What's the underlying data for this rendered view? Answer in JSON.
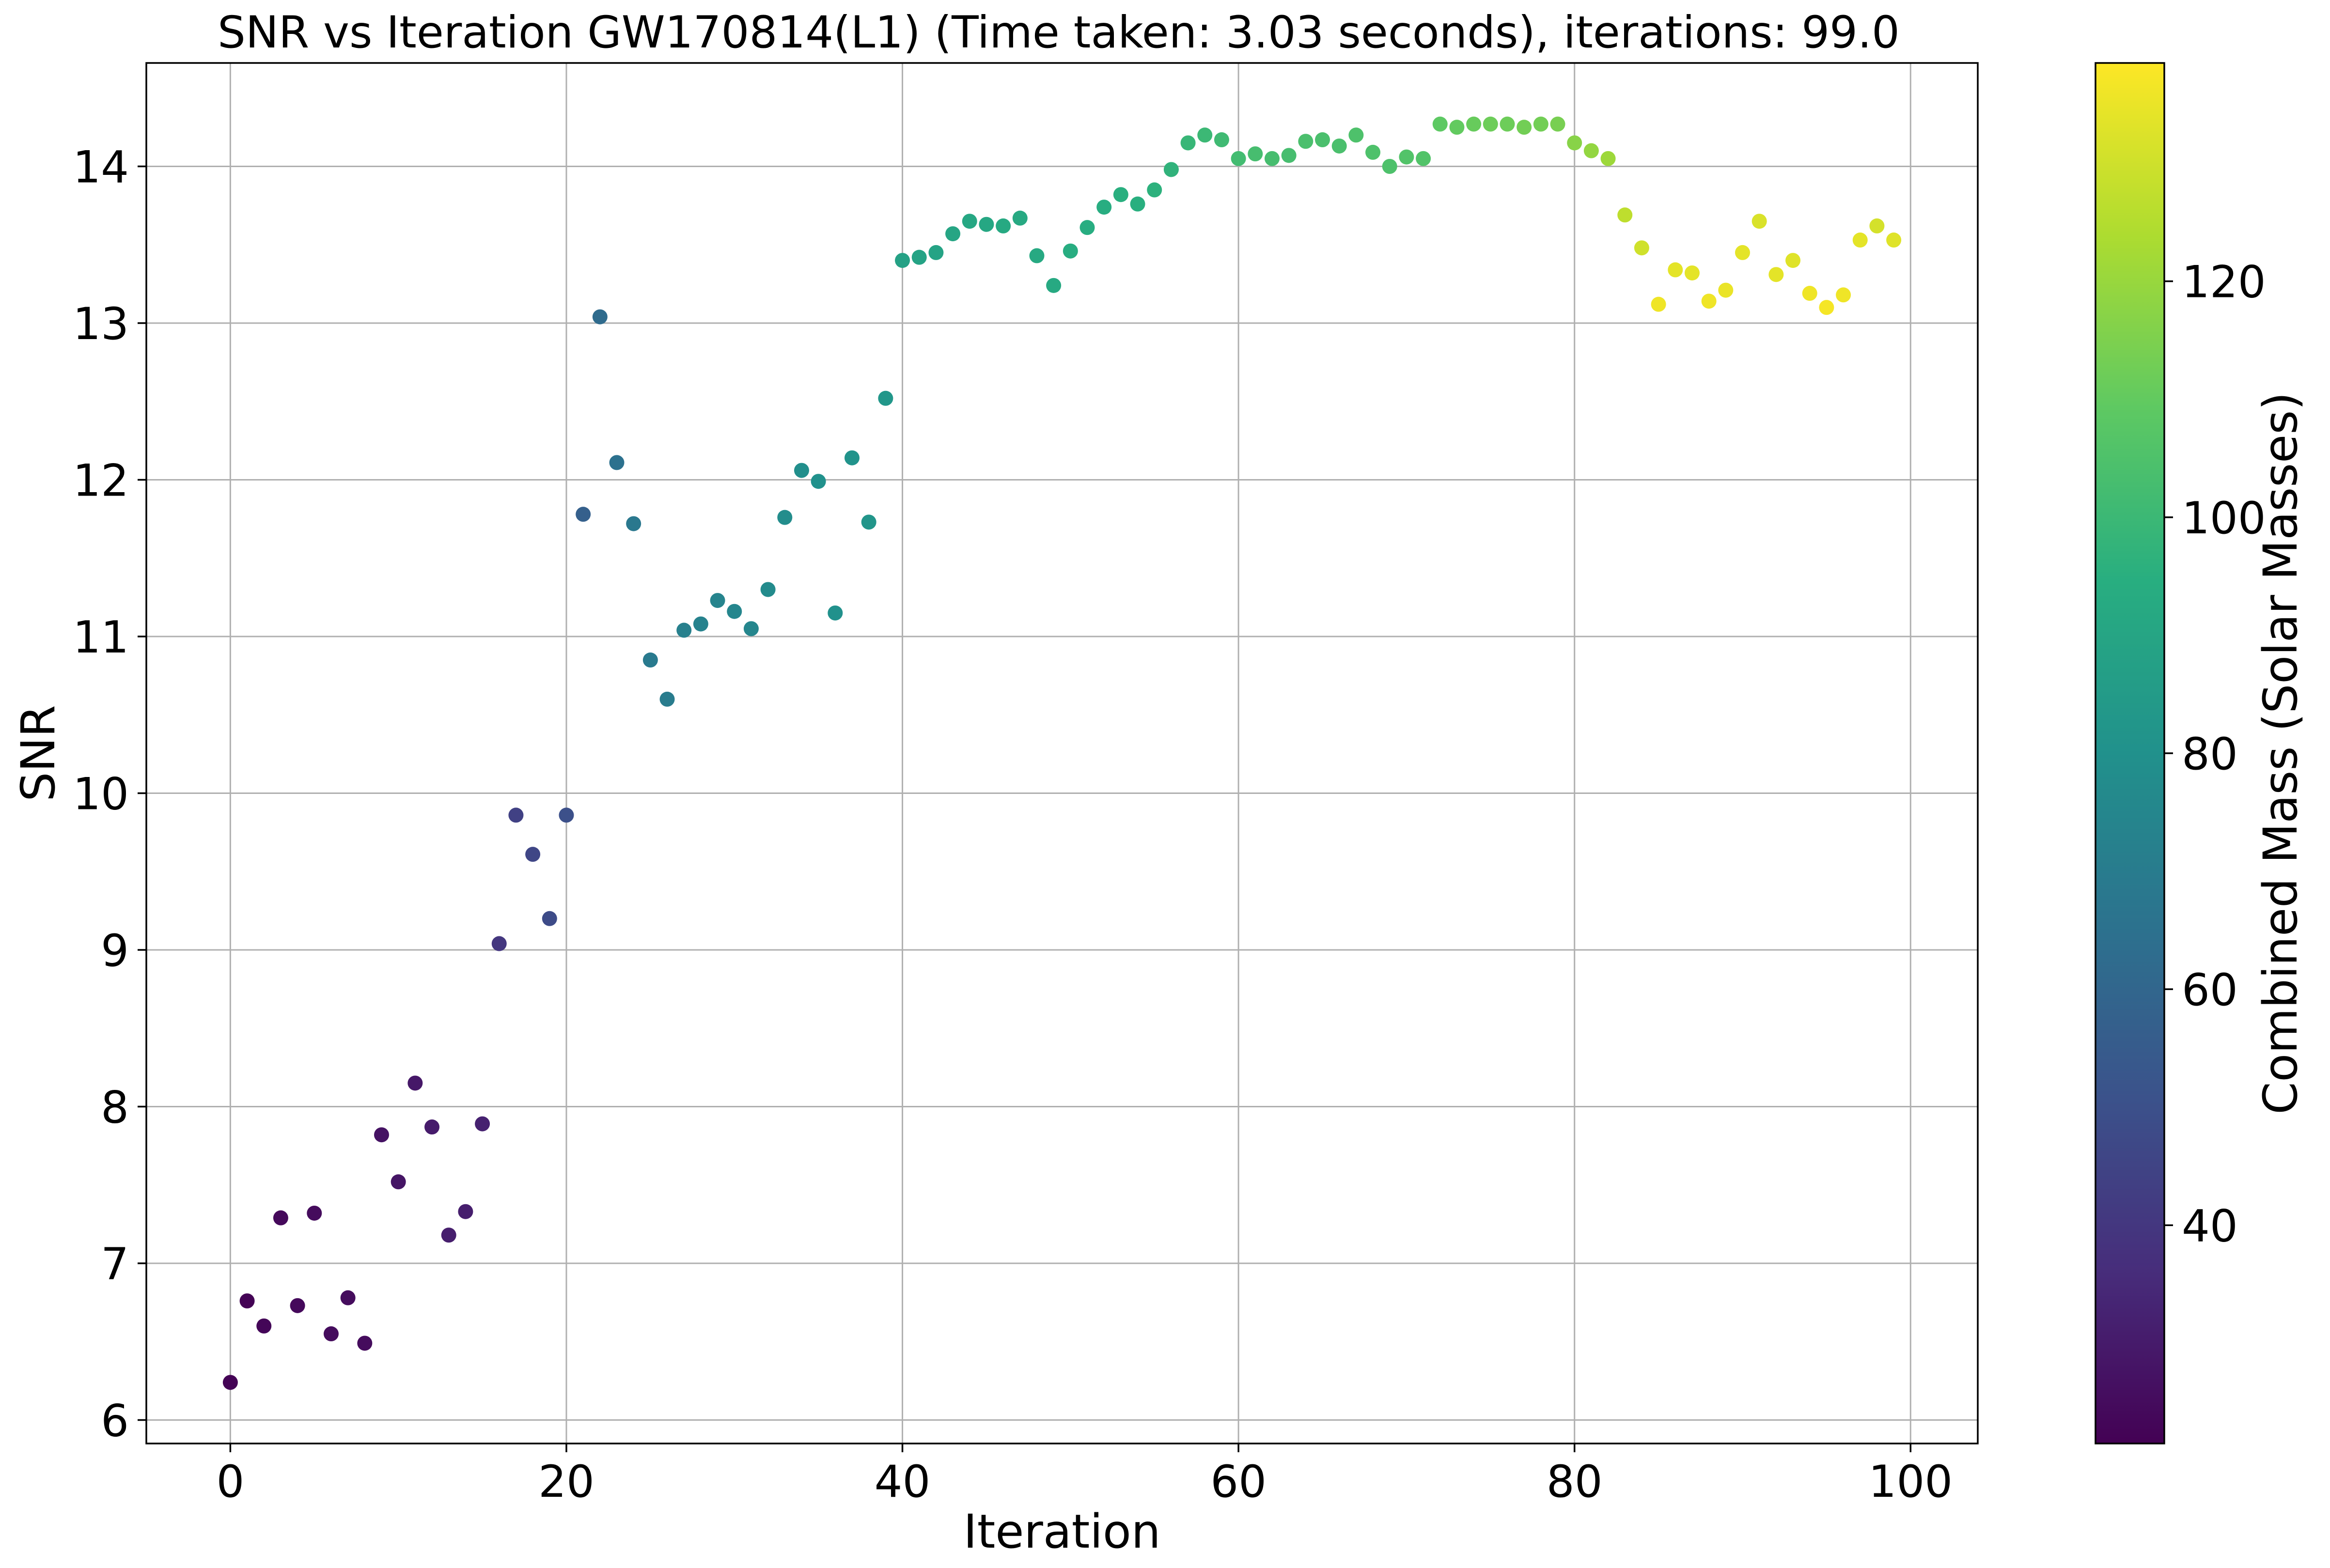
{
  "chart_data": {
    "type": "scatter",
    "title": "SNR vs Iteration GW170814(L1) (Time taken: 3.03 seconds), iterations: 99.0",
    "xlabel": "Iteration",
    "ylabel": "SNR",
    "colorbar_label": "Combined Mass (Solar Masses)",
    "xlim": [
      -5,
      104
    ],
    "ylim": [
      5.85,
      14.66
    ],
    "xticks": [
      0,
      20,
      40,
      60,
      80,
      100
    ],
    "yticks": [
      6,
      7,
      8,
      9,
      10,
      11,
      12,
      13,
      14
    ],
    "colorbar": {
      "colormap": "viridis",
      "range": [
        21.5,
        138.5
      ],
      "ticks": [
        40,
        60,
        80,
        100,
        120
      ]
    },
    "grid": true,
    "x": [
      0,
      1,
      2,
      3,
      4,
      5,
      6,
      7,
      8,
      9,
      10,
      11,
      12,
      13,
      14,
      15,
      16,
      17,
      18,
      19,
      20,
      21,
      22,
      23,
      24,
      25,
      26,
      27,
      28,
      29,
      30,
      31,
      32,
      33,
      34,
      35,
      36,
      37,
      38,
      39,
      40,
      41,
      42,
      43,
      44,
      45,
      46,
      47,
      48,
      49,
      50,
      51,
      52,
      53,
      54,
      55,
      56,
      57,
      58,
      59,
      60,
      61,
      62,
      63,
      64,
      65,
      66,
      67,
      68,
      69,
      70,
      71,
      72,
      73,
      74,
      75,
      76,
      77,
      78,
      79,
      80,
      81,
      82,
      83,
      84,
      85,
      86,
      87,
      88,
      89,
      90,
      91,
      92,
      93,
      94,
      95,
      96,
      97,
      98,
      99
    ],
    "y": [
      6.24,
      6.76,
      6.6,
      7.29,
      6.73,
      7.32,
      6.55,
      6.78,
      6.49,
      7.82,
      7.52,
      8.15,
      7.87,
      7.18,
      7.33,
      7.89,
      9.04,
      9.86,
      9.61,
      9.2,
      9.86,
      11.78,
      13.04,
      12.11,
      11.72,
      10.85,
      10.6,
      11.04,
      11.08,
      11.23,
      11.16,
      11.05,
      11.3,
      11.76,
      12.06,
      11.99,
      11.15,
      12.14,
      11.73,
      12.52,
      13.4,
      13.42,
      13.45,
      13.57,
      13.65,
      13.63,
      13.62,
      13.67,
      13.43,
      13.24,
      13.46,
      13.61,
      13.74,
      13.82,
      13.76,
      13.85,
      13.98,
      14.15,
      14.2,
      14.17,
      14.05,
      14.08,
      14.05,
      14.07,
      14.16,
      14.17,
      14.13,
      14.2,
      14.09,
      14.0,
      14.06,
      14.05,
      14.27,
      14.25,
      14.27,
      14.27,
      14.27,
      14.25,
      14.27,
      14.27,
      14.15,
      14.1,
      14.05,
      13.69,
      13.48,
      13.12,
      13.34,
      13.32,
      13.14,
      13.21,
      13.45,
      13.65,
      13.31,
      13.4,
      13.19,
      13.1,
      13.18,
      13.53,
      13.62,
      13.53
    ],
    "mass": [
      22,
      22,
      23,
      24,
      24,
      25,
      25,
      25,
      25,
      27,
      28,
      29,
      30,
      31,
      31,
      32,
      40,
      44,
      46,
      48,
      50,
      57,
      62,
      65,
      68,
      69,
      70,
      72,
      73,
      74,
      75,
      75,
      77,
      78,
      79,
      80,
      80,
      81,
      82,
      83,
      88,
      89,
      89,
      90,
      91,
      91,
      92,
      92,
      92,
      92,
      94,
      94,
      94,
      95,
      95,
      96,
      97,
      99,
      100,
      101,
      102,
      103,
      103,
      103,
      104,
      104,
      104,
      105,
      105,
      105,
      106,
      106,
      109,
      110,
      111,
      112,
      112,
      113,
      113,
      114,
      117,
      119,
      121,
      127,
      130,
      136,
      134,
      134,
      136,
      135,
      134,
      132,
      134,
      133,
      136,
      137,
      136,
      134,
      131,
      133
    ]
  }
}
